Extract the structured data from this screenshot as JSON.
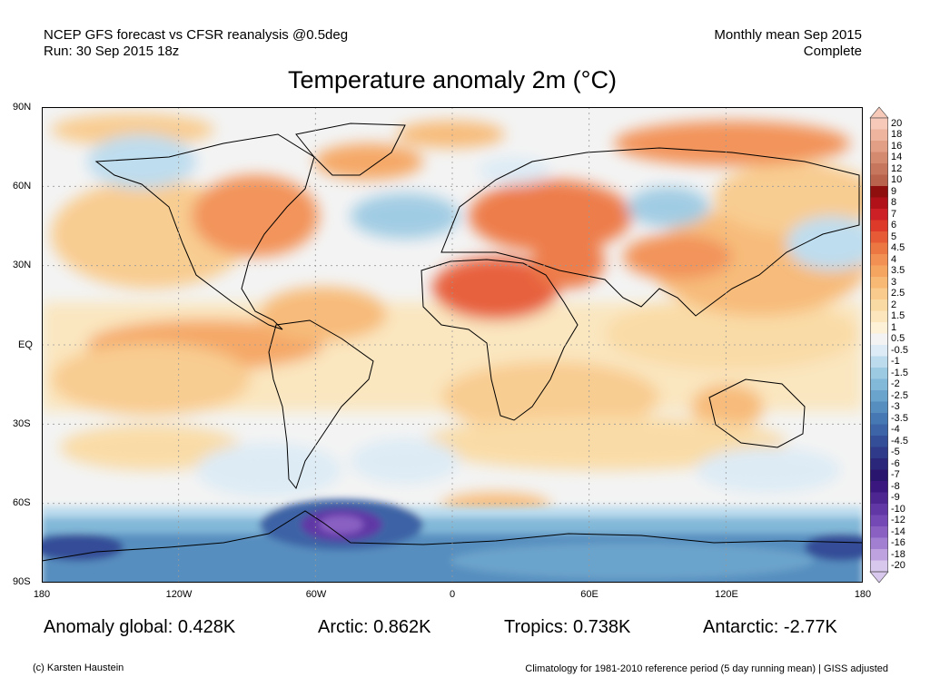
{
  "header": {
    "line1_left": "NCEP GFS forecast vs CFSR reanalysis @0.5deg",
    "line2_left": "Run: 30 Sep 2015 18z",
    "line1_right": "Monthly mean Sep 2015",
    "line2_right": "Complete",
    "title": "Temperature anomaly 2m (°C)"
  },
  "axes": {
    "lat_labels": [
      "90N",
      "60N",
      "30N",
      "EQ",
      "30S",
      "60S",
      "90S"
    ],
    "lon_labels": [
      "180",
      "120W",
      "60W",
      "0",
      "60E",
      "120E",
      "180"
    ]
  },
  "colorbar": {
    "labels": [
      "20",
      "18",
      "16",
      "14",
      "12",
      "10",
      "9",
      "8",
      "7",
      "6",
      "5",
      "4.5",
      "4",
      "3.5",
      "3",
      "2.5",
      "2",
      "1.5",
      "1",
      "0.5",
      "-0.5",
      "-1",
      "-1.5",
      "-2",
      "-2.5",
      "-3",
      "-3.5",
      "-4",
      "-4.5",
      "-5",
      "-6",
      "-7",
      "-8",
      "-9",
      "-10",
      "-12",
      "-14",
      "-16",
      "-18",
      "-20"
    ],
    "colors": [
      "#f6c9b9",
      "#eeb49e",
      "#e39f86",
      "#d48a6f",
      "#c6765c",
      "#b9634d",
      "#8e0f0d",
      "#b1121a",
      "#cc1f26",
      "#de3a2a",
      "#e75a36",
      "#ed7743",
      "#f28f52",
      "#f6a561",
      "#f8b975",
      "#f9cb8c",
      "#fadaa3",
      "#fbe6bd",
      "#fdf1d8",
      "#f3f3f3",
      "#dcebf6",
      "#bcdcee",
      "#9ccae3",
      "#82b8d8",
      "#6aa3cb",
      "#568ebf",
      "#4679b3",
      "#3c64a6",
      "#354e98",
      "#2f3a8a",
      "#2a277b",
      "#29156d",
      "#3a177f",
      "#4e2692",
      "#6137a6",
      "#7449b6",
      "#8a61c3",
      "#a37fd1",
      "#bea2df",
      "#d9c8ee"
    ]
  },
  "stats": {
    "global": "Anomaly global: 0.428K",
    "arctic": "Arctic: 0.862K",
    "tropics": "Tropics: 0.738K",
    "antarctic": "Antarctic: -2.77K"
  },
  "footer": {
    "left": "(c) Karsten Haustein",
    "right": "Climatology for 1981-2010 reference period (5 day running mean) | GISS adjusted"
  }
}
